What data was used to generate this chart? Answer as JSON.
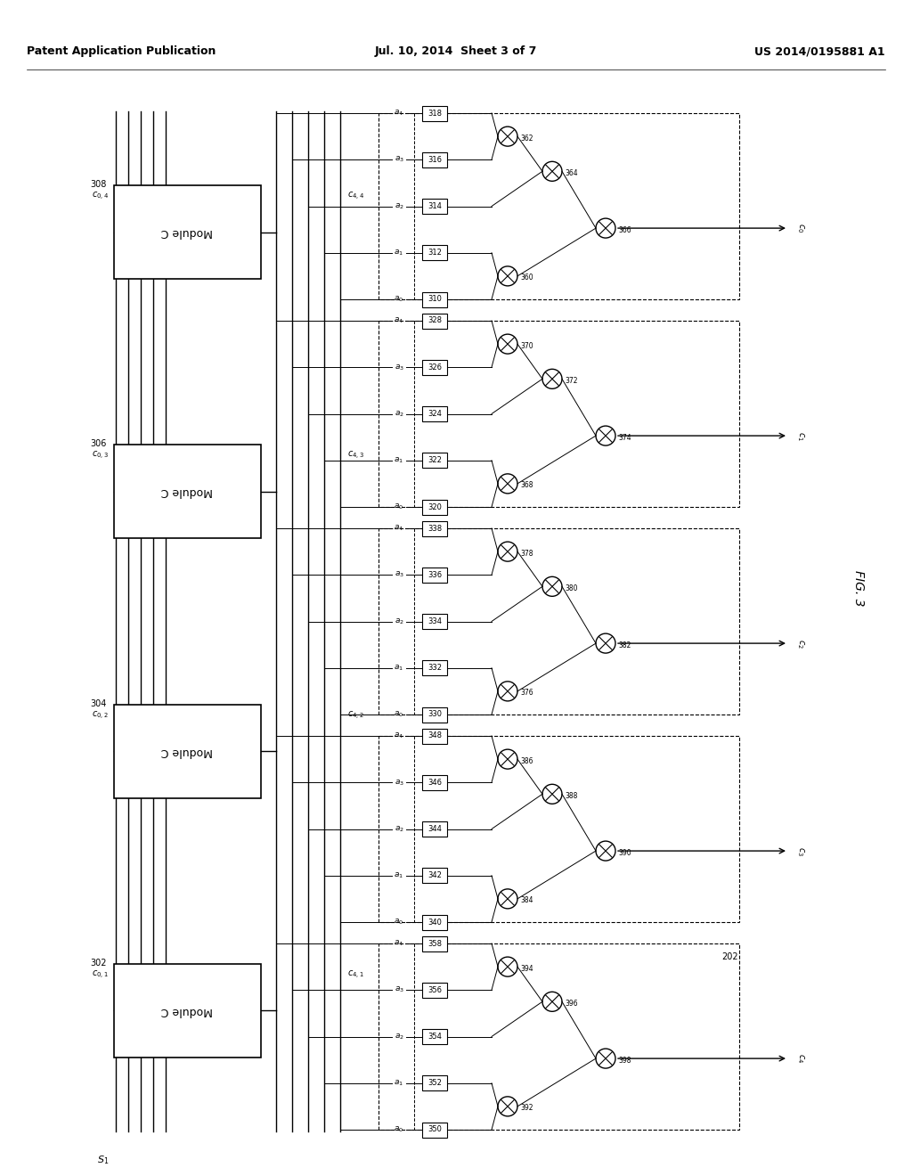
{
  "header_left": "Patent Application Publication",
  "header_center": "Jul. 10, 2014  Sheet 3 of 7",
  "header_right": "US 2014/0195881 A1",
  "fig_label": "FIG. 3",
  "background_color": "#ffffff",
  "line_color": "#000000",
  "module_refs": [
    "308",
    "306",
    "304",
    "302"
  ],
  "module_label": "Module C",
  "left_bus_labels": [
    "c_{0,4}",
    "c_{0,3}",
    "c_{0,2}",
    "c_{0,1}"
  ],
  "right_bus_labels": [
    "c_{4,4}",
    "c_{4,3}",
    "c_{4,2}",
    "c_{4,1}"
  ],
  "s1_label": "S_1",
  "ref_202": "202",
  "sections": [
    {
      "regs": [
        "318",
        "316",
        "314",
        "312",
        "310"
      ],
      "xor_nums": [
        "362",
        "364",
        "360",
        "366"
      ],
      "out_label": "c_0"
    },
    {
      "regs": [
        "328",
        "326",
        "324",
        "322",
        "320"
      ],
      "xor_nums": [
        "370",
        "372",
        "368",
        "374"
      ],
      "out_label": "c_1"
    },
    {
      "regs": [
        "338",
        "336",
        "334",
        "332",
        "330"
      ],
      "xor_nums": [
        "378",
        "380",
        "376",
        "382"
      ],
      "out_label": "c_2"
    },
    {
      "regs": [
        "348",
        "346",
        "344",
        "342",
        "340"
      ],
      "xor_nums": [
        "386",
        "388",
        "384",
        "390"
      ],
      "out_label": "c_3"
    },
    {
      "regs": [
        "358",
        "356",
        "354",
        "352",
        "350"
      ],
      "xor_nums": [
        "394",
        "396",
        "392",
        "398"
      ],
      "out_label": "c_4"
    }
  ]
}
